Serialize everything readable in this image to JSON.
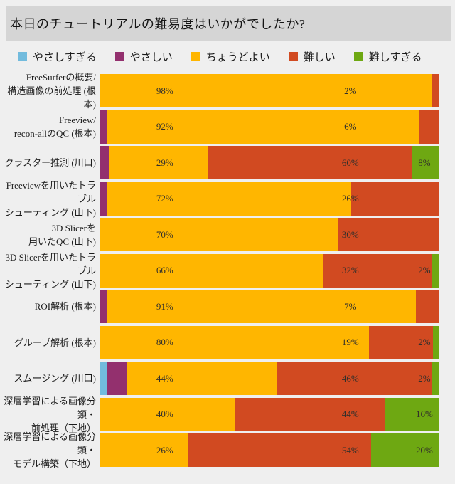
{
  "title": "本日のチュートリアルの難易度はいかがでしたか?",
  "legend": [
    {
      "key": "too-easy",
      "label": "やさしすぎる",
      "color": "#72bbdd"
    },
    {
      "key": "easy",
      "label": "やさしい",
      "color": "#93306e"
    },
    {
      "key": "just-right",
      "label": "ちょうどよい",
      "color": "#ffb600"
    },
    {
      "key": "hard",
      "label": "難しい",
      "color": "#d14a21"
    },
    {
      "key": "too-hard",
      "label": "難しすぎる",
      "color": "#6ea812"
    }
  ],
  "chart_data": {
    "type": "bar",
    "orientation": "horizontal",
    "stacked": true,
    "unit": "percent",
    "xlim": [
      0,
      100
    ],
    "grid": false,
    "legend_position": "top",
    "title": "本日のチュートリアルの難易度はいかがでしたか?",
    "series_keys": [
      "too-easy",
      "easy",
      "just-right",
      "hard",
      "too-hard"
    ],
    "series_names": [
      "やさしすぎる",
      "やさしい",
      "ちょうどよい",
      "難しい",
      "難しすぎる"
    ],
    "series_colors": [
      "#72bbdd",
      "#93306e",
      "#ffb600",
      "#d14a21",
      "#6ea812"
    ],
    "label_x_percent": [
      null,
      null,
      19.2,
      73.8,
      95.6
    ],
    "rows": [
      {
        "category_lines": [
          "FreeSurferの概要/",
          "構造画像の前処理 (根本)"
        ],
        "values": [
          0,
          0,
          98,
          2,
          0
        ],
        "labels": [
          null,
          null,
          "98%",
          "2%",
          null
        ]
      },
      {
        "category_lines": [
          "Freeview/",
          "recon-allのQC (根本)"
        ],
        "values": [
          0,
          2,
          92,
          6,
          0
        ],
        "labels": [
          null,
          null,
          "92%",
          "6%",
          null
        ]
      },
      {
        "category_lines": [
          "クラスター推測 (川口)"
        ],
        "values": [
          0,
          3,
          29,
          60,
          8
        ],
        "labels": [
          null,
          null,
          "29%",
          "60%",
          "8%"
        ]
      },
      {
        "category_lines": [
          "Freeviewを用いたトラブル",
          "シューティング (山下)"
        ],
        "values": [
          0,
          2,
          72,
          26,
          0
        ],
        "labels": [
          null,
          null,
          "72%",
          "26%",
          null
        ]
      },
      {
        "category_lines": [
          "3D Slicerを",
          "用いたQC (山下)"
        ],
        "values": [
          0,
          0,
          70,
          30,
          0
        ],
        "labels": [
          null,
          null,
          "70%",
          "30%",
          null
        ]
      },
      {
        "category_lines": [
          "3D Slicerを用いたトラブル",
          "シューティング (山下)"
        ],
        "values": [
          0,
          0,
          66,
          32,
          2
        ],
        "labels": [
          null,
          null,
          "66%",
          "32%",
          "2%"
        ]
      },
      {
        "category_lines": [
          "ROI解析 (根本)"
        ],
        "values": [
          0,
          2,
          91,
          7,
          0
        ],
        "labels": [
          null,
          null,
          "91%",
          "7%",
          null
        ]
      },
      {
        "category_lines": [
          "グループ解析 (根本)"
        ],
        "values": [
          0,
          0,
          80,
          19,
          2
        ],
        "labels": [
          null,
          null,
          "80%",
          "19%",
          "2%"
        ]
      },
      {
        "category_lines": [
          "スムージング (川口)"
        ],
        "values": [
          2,
          6,
          44,
          46,
          2
        ],
        "labels": [
          null,
          null,
          "44%",
          "46%",
          "2%"
        ]
      },
      {
        "category_lines": [
          "深層学習による画像分類・",
          "前処理（下地）"
        ],
        "values": [
          0,
          0,
          40,
          44,
          16
        ],
        "labels": [
          null,
          null,
          "40%",
          "44%",
          "16%"
        ]
      },
      {
        "category_lines": [
          "深層学習による画像分類・",
          "モデル構築（下地）"
        ],
        "values": [
          0,
          0,
          26,
          54,
          20
        ],
        "labels": [
          null,
          null,
          "26%",
          "54%",
          "20%"
        ]
      }
    ]
  }
}
